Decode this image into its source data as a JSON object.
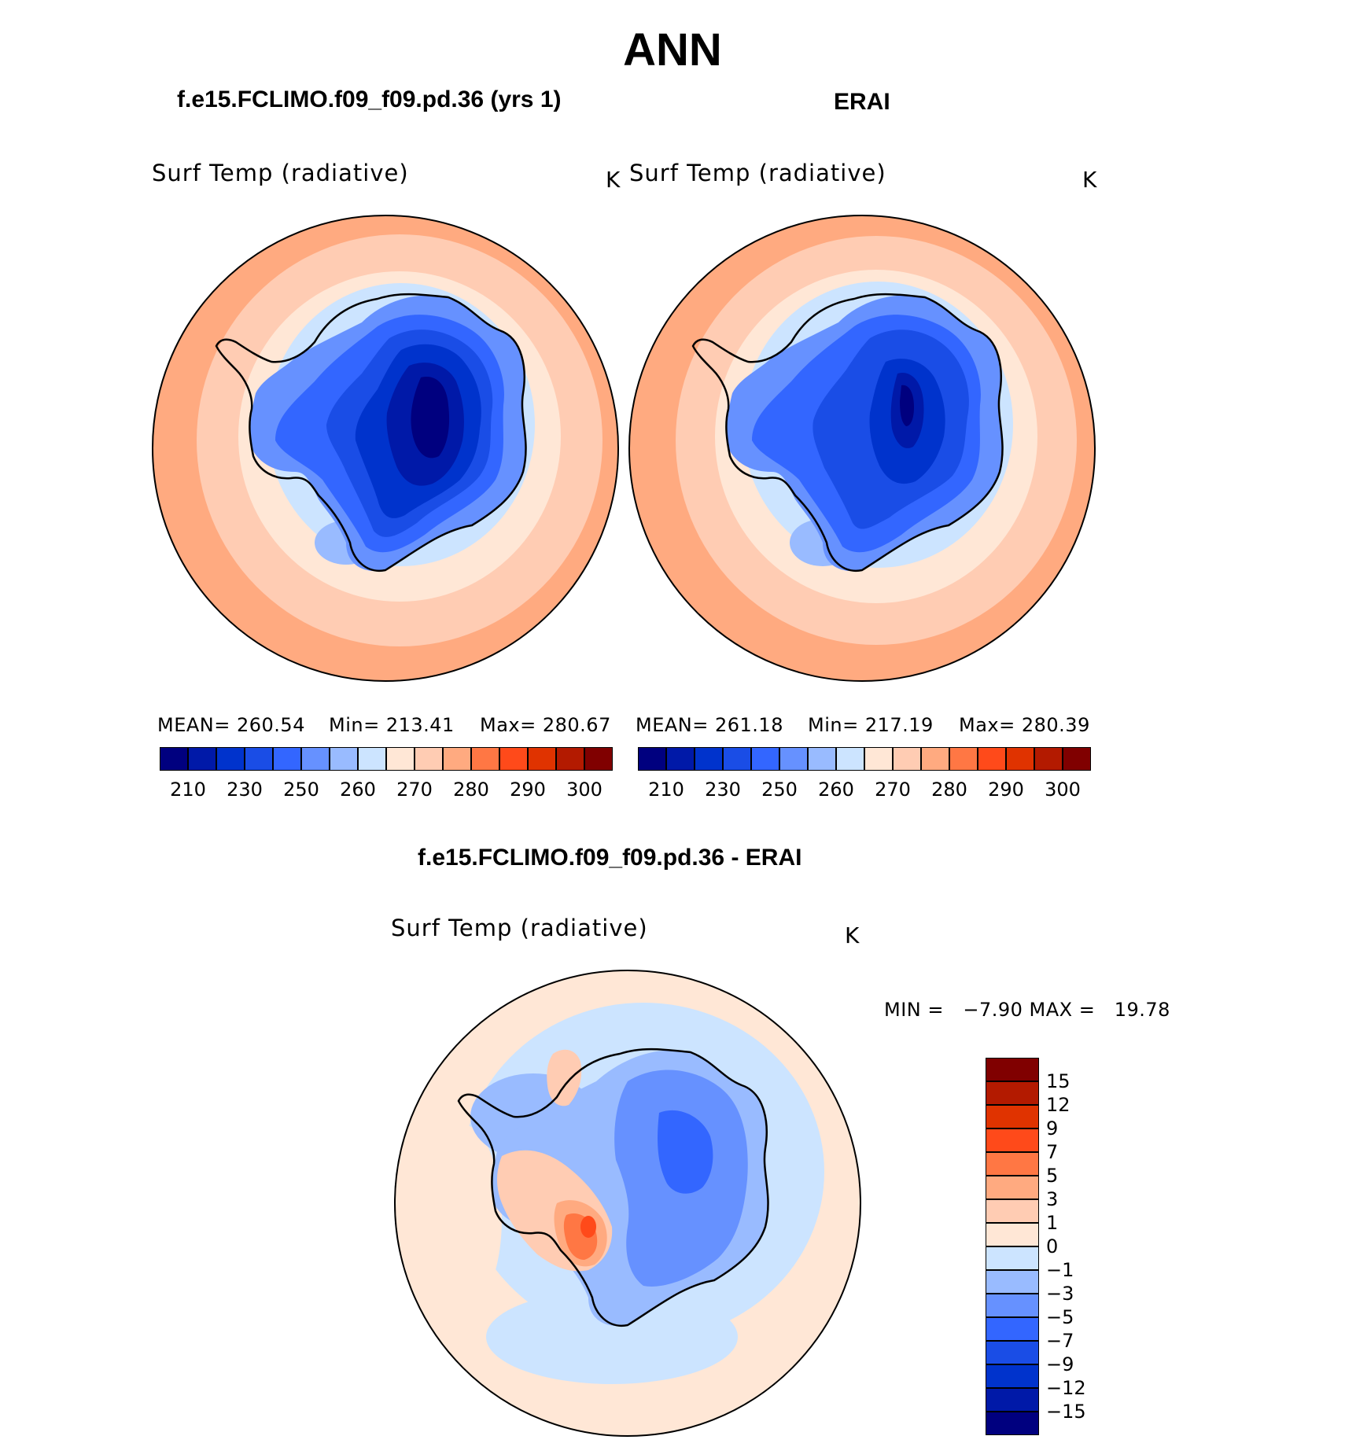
{
  "title": "ANN",
  "panels": [
    {
      "title": "f.e15.FCLIMO.f09_f09.pd.36 (yrs 1)",
      "variable": "Surf Temp (radiative)",
      "units": "K",
      "mean_label": "MEAN= 260.54",
      "min_label": "Min= 213.41",
      "max_label": "Max= 280.67"
    },
    {
      "title": "ERAI",
      "variable": "Surf Temp (radiative)",
      "units": "K",
      "mean_label": "MEAN= 261.18",
      "min_label": "Min= 217.19",
      "max_label": "Max= 280.39"
    }
  ],
  "diff": {
    "title": "f.e15.FCLIMO.f09_f09.pd.36 - ERAI",
    "variable": "Surf Temp (radiative)",
    "units": "K",
    "minmax_label": "MIN =   −7.90 MAX =   19.78"
  },
  "colorbar_abs": {
    "colors": [
      "#00007f",
      "#0019a8",
      "#0033cc",
      "#1a4de6",
      "#3366ff",
      "#6691ff",
      "#99bbff",
      "#cce4ff",
      "#ffe7d6",
      "#ffccb3",
      "#ffaa80",
      "#ff7744",
      "#ff4a1a",
      "#e03300",
      "#b31a00",
      "#800000"
    ],
    "ticks": [
      "210",
      "230",
      "250",
      "260",
      "270",
      "280",
      "290",
      "300"
    ]
  },
  "colorbar_diff": {
    "colors": [
      "#800000",
      "#b31a00",
      "#e03300",
      "#ff4a1a",
      "#ff7744",
      "#ffaa80",
      "#ffccb3",
      "#ffe7d6",
      "#cce4ff",
      "#99bbff",
      "#6691ff",
      "#3366ff",
      "#1a4de6",
      "#0033cc",
      "#0019a8",
      "#00007f"
    ],
    "ticks": [
      "15",
      "12",
      "9",
      "7",
      "5",
      "3",
      "1",
      "0",
      "−1",
      "−3",
      "−5",
      "−7",
      "−9",
      "−12",
      "−15"
    ]
  },
  "map_colors": {
    "warm_outer": "#ffaa80",
    "warm_mid": "#ffccb3",
    "warm_inner": "#ffe7d6",
    "cool_ice": "#cce4ff",
    "cool_shelf": "#99bbff",
    "land_1": "#6691ff",
    "land_2": "#3366ff",
    "land_3": "#1a4de6",
    "land_4": "#0033cc",
    "land_5": "#0019a8",
    "land_6": "#00007f",
    "diff_zero": "#ffe7d6",
    "diff_neg1": "#cce4ff",
    "diff_neg3": "#99bbff",
    "diff_neg5": "#6691ff",
    "diff_neg7": "#3366ff",
    "diff_pos3": "#ffccb3",
    "diff_pos5": "#ffaa80",
    "diff_pos7": "#ff7744",
    "diff_pos9": "#ff4a1a"
  }
}
